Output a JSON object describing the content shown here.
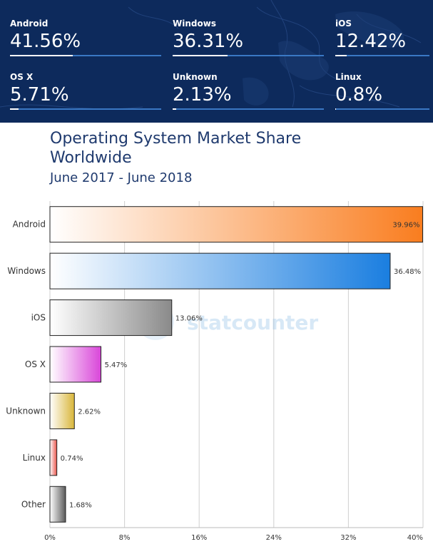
{
  "stats": [
    {
      "label": "Android",
      "value": "41.56%",
      "pct": 41.56
    },
    {
      "label": "Windows",
      "value": "36.31%",
      "pct": 36.31
    },
    {
      "label": "iOS",
      "value": "12.42%",
      "pct": 12.42
    },
    {
      "label": "OS X",
      "value": "5.71%",
      "pct": 5.71
    },
    {
      "label": "Unknown",
      "value": "2.13%",
      "pct": 2.13
    },
    {
      "label": "Linux",
      "value": "0.8%",
      "pct": 0.8
    }
  ],
  "watermark": "statcounter",
  "chart_data": {
    "type": "bar",
    "orientation": "horizontal",
    "title": "Operating System Market Share Worldwide",
    "subtitle": "June 2017 - June 2018",
    "categories": [
      "Android",
      "Windows",
      "iOS",
      "OS X",
      "Unknown",
      "Linux",
      "Other"
    ],
    "values": [
      39.96,
      36.48,
      13.06,
      5.47,
      2.62,
      0.74,
      1.68
    ],
    "value_labels": [
      "39.96%",
      "36.48%",
      "13.06%",
      "5.47%",
      "2.62%",
      "0.74%",
      "1.68%"
    ],
    "xlim": [
      0,
      40
    ],
    "x_ticks": [
      "0%",
      "8%",
      "16%",
      "24%",
      "32%",
      "40%"
    ],
    "grid": true,
    "colors": [
      "#f97d1f",
      "#1a7ee0",
      "#8a8a8a",
      "#d946d9",
      "#d9b63a",
      "#e8534a",
      "#5a5a5a"
    ]
  }
}
